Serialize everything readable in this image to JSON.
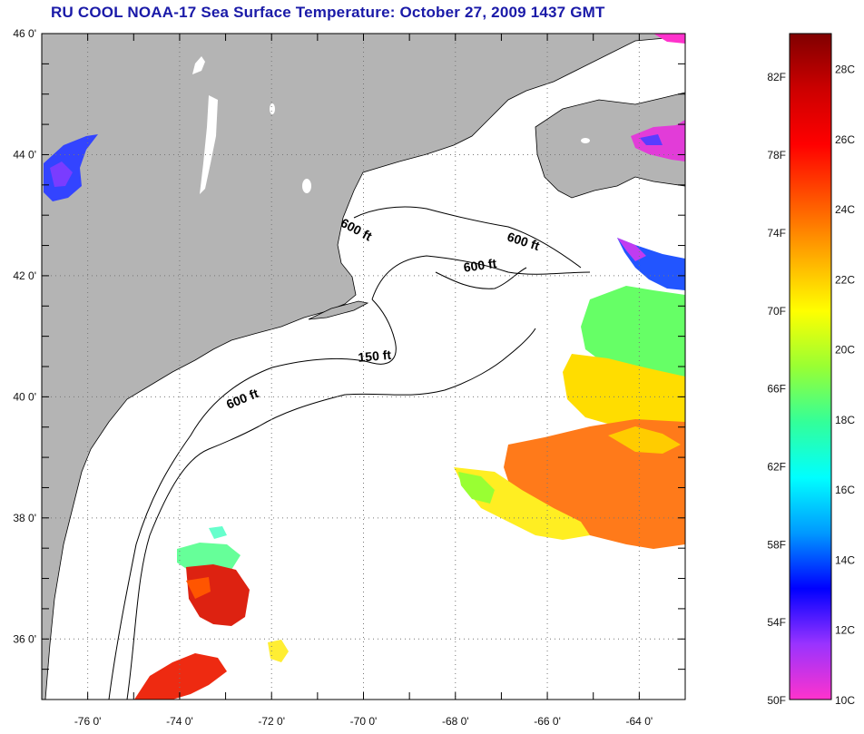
{
  "title": "RU COOL  NOAA-17  Sea Surface Temperature:  October 27, 2009 1437 GMT",
  "map": {
    "lon_ticks": [
      "-76 0'",
      "-74 0'",
      "-72 0'",
      "-70 0'",
      "-68 0'",
      "-66 0'",
      "-64 0'"
    ],
    "lat_ticks": [
      "46 0'",
      "44 0'",
      "42 0'",
      "40 0'",
      "38 0'",
      "36 0'"
    ],
    "lon_range": [
      -77,
      -63
    ],
    "lat_range": [
      35,
      46
    ],
    "grid": "dotted",
    "contour_labels": [
      {
        "text": "600 ft",
        "lon": -72.6,
        "lat": 39.9,
        "angle": -22
      },
      {
        "text": "150 ft",
        "lon": -69.75,
        "lat": 40.6,
        "angle": -5
      },
      {
        "text": "600 ft",
        "lon": -67.45,
        "lat": 42.1,
        "angle": -8
      },
      {
        "text": "600 ft",
        "lon": -66.55,
        "lat": 42.5,
        "angle": 18
      },
      {
        "text": "600 ft",
        "lon": -70.2,
        "lat": 42.7,
        "angle": 28
      }
    ]
  },
  "colorbar": {
    "f_labels": [
      "82F",
      "78F",
      "74F",
      "70F",
      "66F",
      "62F",
      "58F",
      "54F",
      "50F"
    ],
    "c_labels": [
      "28C",
      "26C",
      "24C",
      "22C",
      "20C",
      "18C",
      "16C",
      "14C",
      "12C",
      "10C"
    ],
    "range_c": [
      10,
      29
    ],
    "colors": [
      "#ff33cc",
      "#9933ff",
      "#0000ff",
      "#0099ff",
      "#00ffff",
      "#33ff99",
      "#99ff33",
      "#ffff00",
      "#ffaa00",
      "#ff5500",
      "#ff0000",
      "#cc0000",
      "#800000"
    ]
  }
}
